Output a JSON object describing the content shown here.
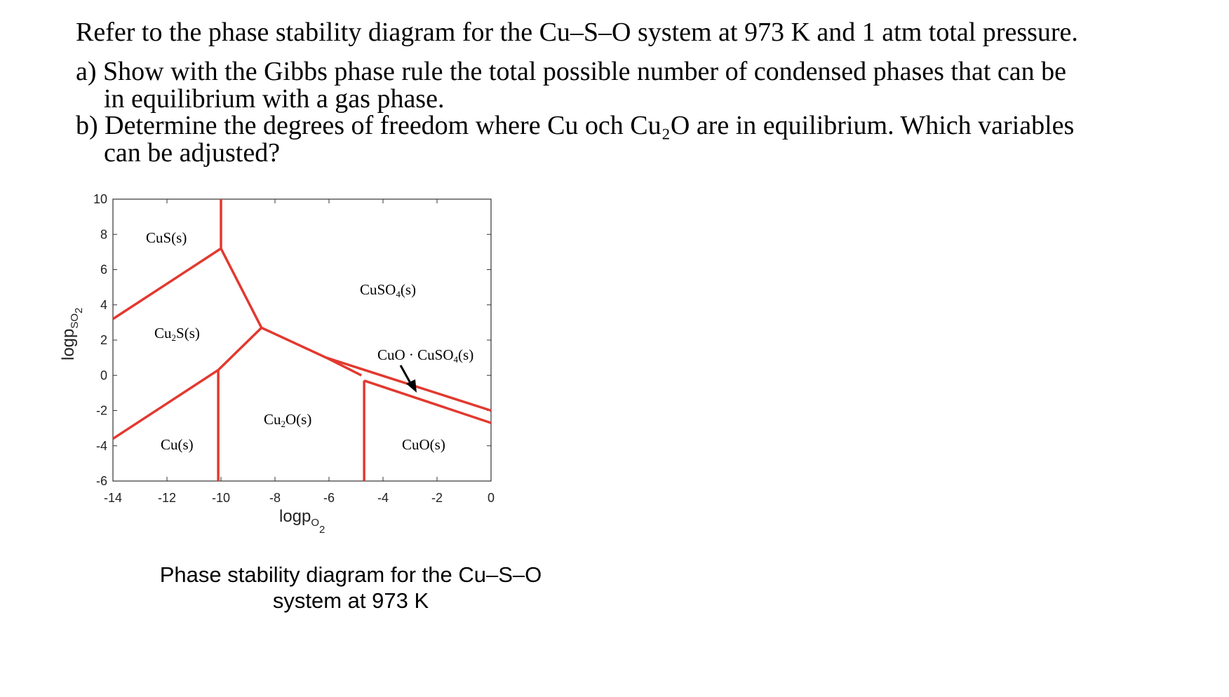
{
  "question": {
    "intro": "Refer to the phase stability diagram for the Cu–S–O system at 973 K and 1 atm total pressure.",
    "a_line1": "a) Show with the Gibbs phase rule the total possible number of condensed phases that can be",
    "a_line2": "in equilibrium with a gas phase.",
    "b_line1": "b) Determine the degrees of freedom where Cu och Cu₂O are in equilibrium. Which variables",
    "b_line2": "can be adjusted?"
  },
  "figure": {
    "caption_line1": "Phase stability diagram for the Cu–S–O",
    "caption_line2": "system at 973 K",
    "xlabel_main": "logp",
    "xlabel_sub": "O",
    "xlabel_subsub": "2",
    "ylabel_main": "logp",
    "ylabel_sub": "SO",
    "ylabel_subsub": "2",
    "x_ticks": [
      "-14",
      "-12",
      "-10",
      "-8",
      "-6",
      "-4",
      "-2",
      "0"
    ],
    "y_ticks": [
      "10",
      "8",
      "6",
      "4",
      "2",
      "0",
      "-2",
      "-4",
      "-6"
    ],
    "regions": {
      "cus": "CuS(s)",
      "cu2s_a": "Cu",
      "cu2s_b": "2",
      "cu2s_c": "S(s)",
      "cu": "Cu(s)",
      "cu2o_a": "Cu",
      "cu2o_b": "2",
      "cu2o_c": "O(s)",
      "cuso4_a": "CuSO",
      "cuso4_b": "4",
      "cuso4_c": "(s)",
      "cuocuso4_a": "CuO · CuSO",
      "cuocuso4_b": "4",
      "cuocuso4_c": "(s)",
      "cuo": "CuO(s)"
    },
    "line_color": "#e2392f",
    "arrow_color": "#000000"
  },
  "chart_data": {
    "type": "phase-diagram",
    "title": "Phase stability diagram for the Cu–S–O system at 973 K",
    "xlabel": "logp_O2",
    "ylabel": "logp_SO2",
    "xlim": [
      -14,
      0
    ],
    "ylim": [
      -6,
      10
    ],
    "boundaries": [
      {
        "points": [
          [
            -14,
            3.2
          ],
          [
            -10,
            7.2
          ]
        ]
      },
      {
        "points": [
          [
            -10,
            10
          ],
          [
            -10,
            7.2
          ]
        ]
      },
      {
        "points": [
          [
            -10,
            7.2
          ],
          [
            -8.5,
            2.7
          ]
        ]
      },
      {
        "points": [
          [
            -8.5,
            2.7
          ],
          [
            -10.1,
            0.3
          ]
        ]
      },
      {
        "points": [
          [
            -14,
            -3.6
          ],
          [
            -10.1,
            0.3
          ]
        ]
      },
      {
        "points": [
          [
            -10.1,
            0.3
          ],
          [
            -10.1,
            -6
          ]
        ]
      },
      {
        "points": [
          [
            -8.5,
            2.7
          ],
          [
            -6.1,
            1.0
          ]
        ]
      },
      {
        "points": [
          [
            -6.1,
            1.0
          ],
          [
            0,
            -2.0
          ]
        ]
      },
      {
        "points": [
          [
            -6.1,
            1.0
          ],
          [
            -4.8,
            0
          ]
        ]
      },
      {
        "points": [
          [
            -4.7,
            -0.3
          ],
          [
            0,
            -2.7
          ]
        ]
      },
      {
        "points": [
          [
            -4.7,
            -0.3
          ],
          [
            -4.7,
            -6
          ]
        ]
      }
    ]
  }
}
